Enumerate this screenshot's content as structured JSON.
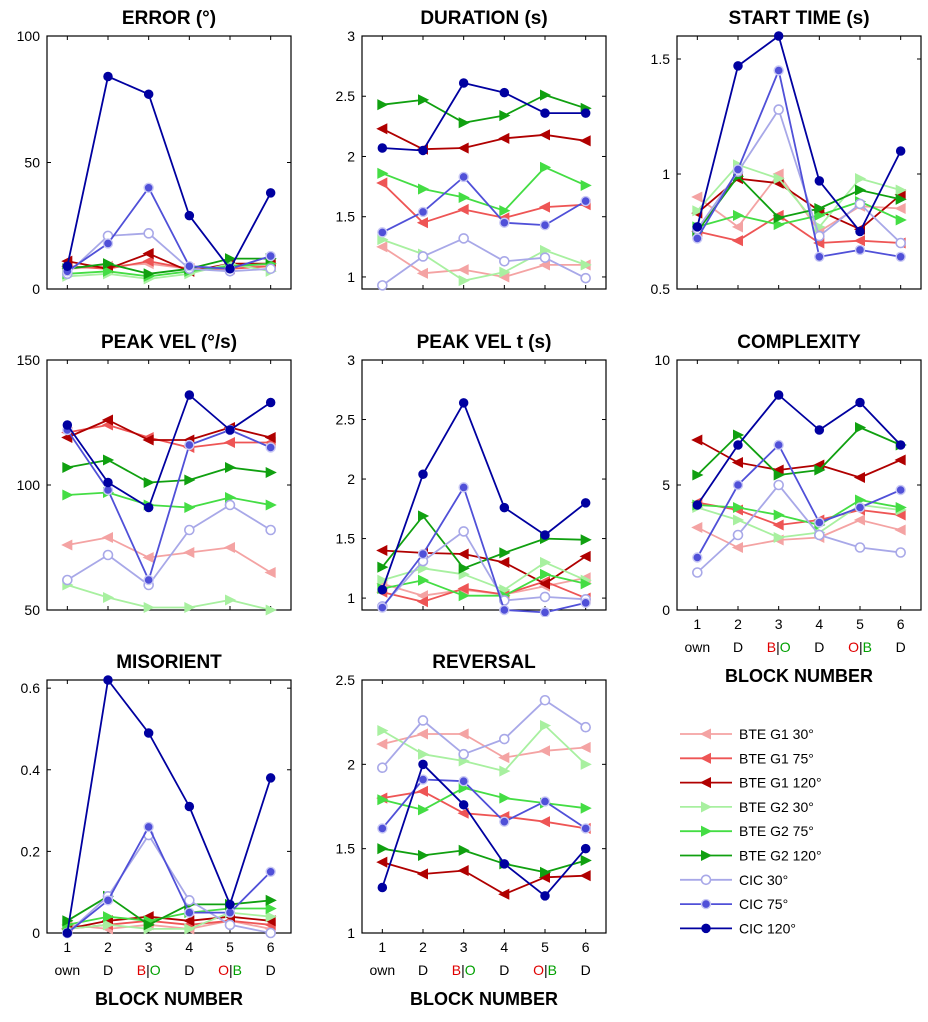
{
  "block_labels": {
    "numbers": [
      "1",
      "2",
      "3",
      "4",
      "5",
      "6"
    ],
    "conditions": [
      [
        {
          "t": "own",
          "c": "#000000"
        }
      ],
      [
        {
          "t": "D",
          "c": "#000000"
        }
      ],
      [
        {
          "t": "B",
          "c": "#e00000"
        },
        {
          "t": "|",
          "c": "#000000"
        },
        {
          "t": "O",
          "c": "#00a000"
        }
      ],
      [
        {
          "t": "D",
          "c": "#000000"
        }
      ],
      [
        {
          "t": "O",
          "c": "#e00000"
        },
        {
          "t": "|",
          "c": "#000000"
        },
        {
          "t": "B",
          "c": "#00a000"
        }
      ],
      [
        {
          "t": "D",
          "c": "#000000"
        }
      ]
    ],
    "xlabel": "BLOCK NUMBER"
  },
  "legend": [
    {
      "name": "BTE G1 30°",
      "color": "#f4a3a3",
      "marker": "tri-left"
    },
    {
      "name": "BTE G1 75°",
      "color": "#ee5555",
      "marker": "tri-left"
    },
    {
      "name": "BTE G1 120°",
      "color": "#b00000",
      "marker": "tri-left"
    },
    {
      "name": "BTE G2 30°",
      "color": "#a8f0a0",
      "marker": "tri-right"
    },
    {
      "name": "BTE G2 75°",
      "color": "#44dd44",
      "marker": "tri-right"
    },
    {
      "name": "BTE G2 120°",
      "color": "#10a010",
      "marker": "tri-right"
    },
    {
      "name": "CIC 30°",
      "color": "#a8a8e8",
      "marker": "ring"
    },
    {
      "name": "CIC 75°",
      "color": "#5050d8",
      "marker": "dot-ring"
    },
    {
      "name": "CIC 120°",
      "color": "#0000a0",
      "marker": "dot"
    }
  ],
  "chart_data": [
    {
      "type": "line",
      "title": "ERROR (°)",
      "x": [
        1,
        2,
        3,
        4,
        5,
        6
      ],
      "xlim": [
        0.5,
        6.5
      ],
      "ylim": [
        0,
        100
      ],
      "yticks": [
        "0",
        "50",
        "100"
      ],
      "show_x_labels": false,
      "series": [
        {
          "name": "BTE G1 30°",
          "values": [
            8,
            9,
            10,
            8,
            9,
            9
          ]
        },
        {
          "name": "BTE G1 75°",
          "values": [
            9,
            8,
            11,
            8,
            8,
            9
          ]
        },
        {
          "name": "BTE G1 120°",
          "values": [
            11,
            8,
            14,
            7,
            10,
            10
          ]
        },
        {
          "name": "BTE G2 30°",
          "values": [
            5,
            6,
            4,
            6,
            10,
            7
          ]
        },
        {
          "name": "BTE G2 75°",
          "values": [
            6,
            7,
            5,
            7,
            9,
            10
          ]
        },
        {
          "name": "BTE G2 120°",
          "values": [
            8,
            10,
            6,
            8,
            12,
            12
          ]
        },
        {
          "name": "CIC 30°",
          "values": [
            6,
            21,
            22,
            8,
            7,
            8
          ]
        },
        {
          "name": "CIC 75°",
          "values": [
            7,
            18,
            40,
            9,
            8,
            13
          ]
        },
        {
          "name": "CIC 120°",
          "values": [
            9,
            84,
            77,
            29,
            8,
            38
          ]
        }
      ]
    },
    {
      "type": "line",
      "title": "DURATION (s)",
      "x": [
        1,
        2,
        3,
        4,
        5,
        6
      ],
      "xlim": [
        0.5,
        6.5
      ],
      "ylim": [
        0.9,
        3
      ],
      "yticks": [
        "1",
        "1.5",
        "2",
        "2.5",
        "3"
      ],
      "show_x_labels": false,
      "series": [
        {
          "name": "BTE G1 30°",
          "values": [
            1.25,
            1.03,
            1.06,
            1.0,
            1.1,
            1.1
          ]
        },
        {
          "name": "BTE G1 75°",
          "values": [
            1.78,
            1.45,
            1.56,
            1.49,
            1.58,
            1.6
          ]
        },
        {
          "name": "BTE G1 120°",
          "values": [
            2.23,
            2.06,
            2.07,
            2.15,
            2.18,
            2.13
          ]
        },
        {
          "name": "BTE G2 30°",
          "values": [
            1.31,
            1.19,
            0.97,
            1.04,
            1.22,
            1.1
          ]
        },
        {
          "name": "BTE G2 75°",
          "values": [
            1.86,
            1.73,
            1.66,
            1.55,
            1.91,
            1.76
          ]
        },
        {
          "name": "BTE G2 120°",
          "values": [
            2.43,
            2.47,
            2.28,
            2.34,
            2.51,
            2.4
          ]
        },
        {
          "name": "CIC 30°",
          "values": [
            0.93,
            1.17,
            1.32,
            1.13,
            1.16,
            0.99
          ]
        },
        {
          "name": "CIC 75°",
          "values": [
            1.37,
            1.54,
            1.83,
            1.45,
            1.43,
            1.63
          ]
        },
        {
          "name": "CIC 120°",
          "values": [
            2.07,
            2.05,
            2.61,
            2.53,
            2.36,
            2.36
          ]
        }
      ]
    },
    {
      "type": "line",
      "title": "START TIME (s)",
      "x": [
        1,
        2,
        3,
        4,
        5,
        6
      ],
      "xlim": [
        0.5,
        6.5
      ],
      "ylim": [
        0.5,
        1.6
      ],
      "yticks": [
        "0.5",
        "1",
        "1.5"
      ],
      "show_x_labels": false,
      "series": [
        {
          "name": "BTE G1 30°",
          "values": [
            0.9,
            0.77,
            1.0,
            0.75,
            0.86,
            0.85
          ]
        },
        {
          "name": "BTE G1 75°",
          "values": [
            0.75,
            0.71,
            0.82,
            0.7,
            0.71,
            0.7
          ]
        },
        {
          "name": "BTE G1 120°",
          "values": [
            0.83,
            0.98,
            0.96,
            0.84,
            0.76,
            0.91
          ]
        },
        {
          "name": "BTE G2 30°",
          "values": [
            0.84,
            1.04,
            0.98,
            0.77,
            0.98,
            0.93
          ]
        },
        {
          "name": "BTE G2 75°",
          "values": [
            0.77,
            0.82,
            0.78,
            0.82,
            0.88,
            0.8
          ]
        },
        {
          "name": "BTE G2 120°",
          "values": [
            0.75,
            0.99,
            0.81,
            0.85,
            0.93,
            0.89
          ]
        },
        {
          "name": "CIC 30°",
          "values": [
            0.76,
            1.01,
            1.28,
            0.73,
            0.87,
            0.7
          ]
        },
        {
          "name": "CIC 75°",
          "values": [
            0.72,
            1.02,
            1.45,
            0.64,
            0.67,
            0.64
          ]
        },
        {
          "name": "CIC 120°",
          "values": [
            0.77,
            1.47,
            1.6,
            0.97,
            0.75,
            1.1
          ]
        }
      ]
    },
    {
      "type": "line",
      "title": "PEAK VEL (°/s)",
      "x": [
        1,
        2,
        3,
        4,
        5,
        6
      ],
      "xlim": [
        0.5,
        6.5
      ],
      "ylim": [
        50,
        150
      ],
      "yticks": [
        "50",
        "100",
        "150"
      ],
      "show_x_labels": false,
      "series": [
        {
          "name": "BTE G1 30°",
          "values": [
            76,
            79,
            71,
            73,
            75,
            65
          ]
        },
        {
          "name": "BTE G1 75°",
          "values": [
            121,
            124,
            119,
            115,
            117,
            117
          ]
        },
        {
          "name": "BTE G1 120°",
          "values": [
            119,
            126,
            118,
            118,
            123,
            119
          ]
        },
        {
          "name": "BTE G2 30°",
          "values": [
            60,
            55,
            51,
            51,
            54,
            50
          ]
        },
        {
          "name": "BTE G2 75°",
          "values": [
            96,
            97,
            92,
            91,
            95,
            92
          ]
        },
        {
          "name": "BTE G2 120°",
          "values": [
            107,
            110,
            101,
            102,
            107,
            105
          ]
        },
        {
          "name": "CIC 30°",
          "values": [
            62,
            72,
            60,
            82,
            92,
            82
          ]
        },
        {
          "name": "CIC 75°",
          "values": [
            122,
            98,
            62,
            116,
            122,
            115
          ]
        },
        {
          "name": "CIC 120°",
          "values": [
            124,
            101,
            91,
            136,
            122,
            133
          ]
        }
      ]
    },
    {
      "type": "line",
      "title": "PEAK VEL t (s)",
      "x": [
        1,
        2,
        3,
        4,
        5,
        6
      ],
      "xlim": [
        0.5,
        6.5
      ],
      "ylim": [
        0.9,
        3
      ],
      "yticks": [
        "1",
        "1.5",
        "2",
        "2.5",
        "3"
      ],
      "show_x_labels": false,
      "series": [
        {
          "name": "BTE G1 30°",
          "values": [
            1.12,
            1.02,
            1.07,
            1.03,
            1.1,
            1.17
          ]
        },
        {
          "name": "BTE G1 75°",
          "values": [
            1.05,
            0.97,
            1.08,
            1.03,
            1.14,
            1.0
          ]
        },
        {
          "name": "BTE G1 120°",
          "values": [
            1.4,
            1.38,
            1.37,
            1.3,
            1.12,
            1.35
          ]
        },
        {
          "name": "BTE G2 30°",
          "values": [
            1.15,
            1.25,
            1.2,
            1.07,
            1.3,
            1.15
          ]
        },
        {
          "name": "BTE G2 75°",
          "values": [
            1.08,
            1.15,
            1.02,
            1.02,
            1.2,
            1.12
          ]
        },
        {
          "name": "BTE G2 120°",
          "values": [
            1.26,
            1.69,
            1.25,
            1.38,
            1.5,
            1.49
          ]
        },
        {
          "name": "CIC 30°",
          "values": [
            0.93,
            1.31,
            1.56,
            0.98,
            1.01,
            0.99
          ]
        },
        {
          "name": "CIC 75°",
          "values": [
            0.92,
            1.37,
            1.93,
            0.9,
            0.88,
            0.96
          ]
        },
        {
          "name": "CIC 120°",
          "values": [
            1.07,
            2.04,
            2.64,
            1.76,
            1.53,
            1.8
          ]
        }
      ]
    },
    {
      "type": "line",
      "title": "COMPLEXITY",
      "x": [
        1,
        2,
        3,
        4,
        5,
        6
      ],
      "xlim": [
        0.5,
        6.5
      ],
      "ylim": [
        0,
        10
      ],
      "yticks": [
        "0",
        "5",
        "10"
      ],
      "show_x_labels": true,
      "series": [
        {
          "name": "BTE G1 30°",
          "values": [
            3.3,
            2.5,
            2.8,
            2.9,
            3.6,
            3.2
          ]
        },
        {
          "name": "BTE G1 75°",
          "values": [
            4.3,
            4.0,
            3.4,
            3.6,
            4.0,
            3.8
          ]
        },
        {
          "name": "BTE G1 120°",
          "values": [
            6.8,
            5.9,
            5.6,
            5.8,
            5.3,
            6.0
          ]
        },
        {
          "name": "BTE G2 30°",
          "values": [
            4.1,
            3.6,
            2.9,
            3.1,
            4.2,
            4.0
          ]
        },
        {
          "name": "BTE G2 75°",
          "values": [
            4.2,
            4.1,
            3.8,
            3.4,
            4.4,
            4.1
          ]
        },
        {
          "name": "BTE G2 120°",
          "values": [
            5.4,
            7.0,
            5.4,
            5.6,
            7.3,
            6.6
          ]
        },
        {
          "name": "CIC 30°",
          "values": [
            1.5,
            3.0,
            5.0,
            3.0,
            2.5,
            2.3
          ]
        },
        {
          "name": "CIC 75°",
          "values": [
            2.1,
            5.0,
            6.6,
            3.5,
            4.1,
            4.8
          ]
        },
        {
          "name": "CIC 120°",
          "values": [
            4.2,
            6.6,
            8.6,
            7.2,
            8.3,
            6.6
          ]
        }
      ]
    },
    {
      "type": "line",
      "title": "MISORIENT",
      "x": [
        1,
        2,
        3,
        4,
        5,
        6
      ],
      "xlim": [
        0.5,
        6.5
      ],
      "ylim": [
        0,
        0.62
      ],
      "yticks": [
        "0",
        "0.2",
        "0.4",
        "0.6"
      ],
      "show_x_labels": true,
      "series": [
        {
          "name": "BTE G1 30°",
          "values": [
            0.02,
            0.01,
            0.02,
            0.01,
            0.03,
            0.01
          ]
        },
        {
          "name": "BTE G1 75°",
          "values": [
            0.01,
            0.02,
            0.03,
            0.02,
            0.03,
            0.02
          ]
        },
        {
          "name": "BTE G1 120°",
          "values": [
            0.01,
            0.03,
            0.04,
            0.03,
            0.04,
            0.03
          ]
        },
        {
          "name": "BTE G2 30°",
          "values": [
            0.01,
            0.02,
            0.01,
            0.01,
            0.05,
            0.04
          ]
        },
        {
          "name": "BTE G2 75°",
          "values": [
            0.02,
            0.04,
            0.03,
            0.05,
            0.06,
            0.06
          ]
        },
        {
          "name": "BTE G2 120°",
          "values": [
            0.03,
            0.09,
            0.02,
            0.07,
            0.07,
            0.08
          ]
        },
        {
          "name": "CIC 30°",
          "values": [
            0.0,
            0.09,
            0.24,
            0.08,
            0.02,
            0.0
          ]
        },
        {
          "name": "CIC 75°",
          "values": [
            0.0,
            0.08,
            0.26,
            0.05,
            0.05,
            0.15
          ]
        },
        {
          "name": "CIC 120°",
          "values": [
            0.0,
            0.62,
            0.49,
            0.31,
            0.07,
            0.38
          ]
        }
      ]
    },
    {
      "type": "line",
      "title": "REVERSAL",
      "x": [
        1,
        2,
        3,
        4,
        5,
        6
      ],
      "xlim": [
        0.5,
        6.5
      ],
      "ylim": [
        1,
        2.5
      ],
      "yticks": [
        "1",
        "1.5",
        "2",
        "2.5"
      ],
      "show_x_labels": true,
      "series": [
        {
          "name": "BTE G1 30°",
          "values": [
            2.12,
            2.18,
            2.18,
            2.04,
            2.08,
            2.1
          ]
        },
        {
          "name": "BTE G1 75°",
          "values": [
            1.8,
            1.84,
            1.71,
            1.69,
            1.66,
            1.62
          ]
        },
        {
          "name": "BTE G1 120°",
          "values": [
            1.42,
            1.35,
            1.37,
            1.23,
            1.33,
            1.34
          ]
        },
        {
          "name": "BTE G2 30°",
          "values": [
            2.2,
            2.06,
            2.02,
            1.96,
            2.23,
            2.0
          ]
        },
        {
          "name": "BTE G2 75°",
          "values": [
            1.79,
            1.73,
            1.86,
            1.8,
            1.77,
            1.74
          ]
        },
        {
          "name": "BTE G2 120°",
          "values": [
            1.5,
            1.46,
            1.49,
            1.41,
            1.36,
            1.43
          ]
        },
        {
          "name": "CIC 30°",
          "values": [
            1.98,
            2.26,
            2.06,
            2.15,
            2.38,
            2.22
          ]
        },
        {
          "name": "CIC 75°",
          "values": [
            1.62,
            1.91,
            1.9,
            1.66,
            1.78,
            1.62
          ]
        },
        {
          "name": "CIC 120°",
          "values": [
            1.27,
            2.0,
            1.76,
            1.41,
            1.22,
            1.5
          ]
        }
      ]
    }
  ]
}
